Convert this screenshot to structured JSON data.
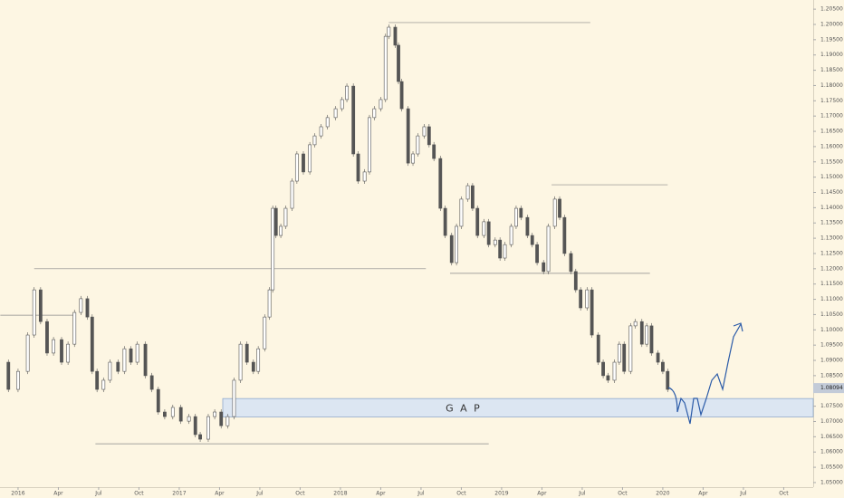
{
  "chart_data": {
    "type": "candles",
    "xlim": [
      2015.888,
      2020.933
    ],
    "ylim": [
      1.0485,
      1.208
    ],
    "xticks": [
      {
        "value": 2016,
        "label": "2016"
      },
      {
        "value": 2016.25,
        "label": "Apr"
      },
      {
        "value": 2016.5,
        "label": "Jul"
      },
      {
        "value": 2016.75,
        "label": "Oct"
      },
      {
        "value": 2017,
        "label": "2017"
      },
      {
        "value": 2017.25,
        "label": "Apr"
      },
      {
        "value": 2017.5,
        "label": "Jul"
      },
      {
        "value": 2017.75,
        "label": "Oct"
      },
      {
        "value": 2018,
        "label": "2018"
      },
      {
        "value": 2018.25,
        "label": "Apr"
      },
      {
        "value": 2018.5,
        "label": "Jul"
      },
      {
        "value": 2018.75,
        "label": "Oct"
      },
      {
        "value": 2019,
        "label": "2019"
      },
      {
        "value": 2019.25,
        "label": "Apr"
      },
      {
        "value": 2019.5,
        "label": "Jul"
      },
      {
        "value": 2019.75,
        "label": "Oct"
      },
      {
        "value": 2020,
        "label": "2020"
      },
      {
        "value": 2020.25,
        "label": "Apr"
      },
      {
        "value": 2020.5,
        "label": "Jul"
      },
      {
        "value": 2020.75,
        "label": "Oct"
      }
    ],
    "yticks": [
      {
        "value": 1.05,
        "label": "1.05000"
      },
      {
        "value": 1.055,
        "label": "1.05500"
      },
      {
        "value": 1.06,
        "label": "1.06000"
      },
      {
        "value": 1.065,
        "label": "1.06500"
      },
      {
        "value": 1.07,
        "label": "1.07000"
      },
      {
        "value": 1.075,
        "label": "1.07500"
      },
      {
        "value": 1.08,
        "label": "1.08000"
      },
      {
        "value": 1.085,
        "label": "1.08500"
      },
      {
        "value": 1.09,
        "label": "1.09000"
      },
      {
        "value": 1.095,
        "label": "1.09500"
      },
      {
        "value": 1.1,
        "label": "1.10000"
      },
      {
        "value": 1.105,
        "label": "1.10500"
      },
      {
        "value": 1.11,
        "label": "1.11000"
      },
      {
        "value": 1.115,
        "label": "1.11500"
      },
      {
        "value": 1.12,
        "label": "1.12000"
      },
      {
        "value": 1.125,
        "label": "1.12500"
      },
      {
        "value": 1.13,
        "label": "1.13000"
      },
      {
        "value": 1.135,
        "label": "1.13500"
      },
      {
        "value": 1.14,
        "label": "1.14000"
      },
      {
        "value": 1.145,
        "label": "1.14500"
      },
      {
        "value": 1.15,
        "label": "1.15000"
      },
      {
        "value": 1.155,
        "label": "1.15500"
      },
      {
        "value": 1.16,
        "label": "1.16000"
      },
      {
        "value": 1.165,
        "label": "1.16500"
      },
      {
        "value": 1.17,
        "label": "1.17000"
      },
      {
        "value": 1.175,
        "label": "1.17500"
      },
      {
        "value": 1.18,
        "label": "1.18000"
      },
      {
        "value": 1.185,
        "label": "1.18500"
      },
      {
        "value": 1.19,
        "label": "1.19000"
      },
      {
        "value": 1.195,
        "label": "1.19500"
      },
      {
        "value": 1.2,
        "label": "1.20000"
      },
      {
        "value": 1.205,
        "label": "1.20500"
      }
    ],
    "series": [
      {
        "color": "#555555",
        "x": [
          2015.89,
          2015.94,
          2016.0,
          2016.06,
          2016.1,
          2016.14,
          2016.18,
          2016.22,
          2016.27,
          2016.31,
          2016.35,
          2016.39,
          2016.43,
          2016.46,
          2016.49,
          2016.53,
          2016.57,
          2016.62,
          2016.66,
          2016.7,
          2016.74,
          2016.79,
          2016.83,
          2016.87,
          2016.91,
          2016.96,
          2017.01,
          2017.06,
          2017.1,
          2017.13,
          2017.18,
          2017.22,
          2017.26,
          2017.3,
          2017.34,
          2017.38,
          2017.42,
          2017.46,
          2017.49,
          2017.53,
          2017.56,
          2017.58,
          2017.6,
          2017.63,
          2017.66,
          2017.7,
          2017.73,
          2017.77,
          2017.81,
          2017.84,
          2017.88,
          2017.92,
          2017.97,
          2018.01,
          2018.04,
          2018.08,
          2018.11,
          2018.15,
          2018.18,
          2018.21,
          2018.25,
          2018.28,
          2018.3,
          2018.34,
          2018.36,
          2018.38,
          2018.42,
          2018.45,
          2018.48,
          2018.52,
          2018.55,
          2018.58,
          2018.62,
          2018.65,
          2018.69,
          2018.72,
          2018.75,
          2018.79,
          2018.82,
          2018.85,
          2018.89,
          2018.92,
          2018.96,
          2018.99,
          2019.02,
          2019.06,
          2019.09,
          2019.12,
          2019.16,
          2019.19,
          2019.22,
          2019.26,
          2019.29,
          2019.33,
          2019.36,
          2019.39,
          2019.43,
          2019.46,
          2019.49,
          2019.53,
          2019.56,
          2019.6,
          2019.63,
          2019.66,
          2019.7,
          2019.73,
          2019.76,
          2019.8,
          2019.83,
          2019.87,
          2019.9,
          2019.93,
          2019.97,
          2020.0,
          2020.03
        ],
        "values": [
          1.0894,
          1.0805,
          1.0864,
          1.0983,
          1.1131,
          1.1027,
          1.0924,
          1.0968,
          1.0894,
          1.0953,
          1.1057,
          1.1102,
          1.1042,
          1.0864,
          1.0805,
          1.0835,
          1.0894,
          1.0864,
          1.0938,
          1.0894,
          1.0953,
          1.085,
          1.0805,
          1.0731,
          1.0716,
          1.0746,
          1.0701,
          1.0716,
          1.0657,
          1.0642,
          1.0716,
          1.0731,
          1.0686,
          1.0716,
          1.0835,
          1.0953,
          1.0894,
          1.0864,
          1.0938,
          1.1042,
          1.1131,
          1.1398,
          1.1309,
          1.1339,
          1.1398,
          1.1487,
          1.1576,
          1.1517,
          1.1606,
          1.1635,
          1.1665,
          1.1695,
          1.1724,
          1.1754,
          1.1798,
          1.1576,
          1.1487,
          1.1517,
          1.1695,
          1.1724,
          1.1754,
          1.1961,
          1.1991,
          1.1932,
          1.1813,
          1.1724,
          1.1546,
          1.1576,
          1.1635,
          1.1665,
          1.1606,
          1.1561,
          1.1398,
          1.1309,
          1.122,
          1.1339,
          1.1428,
          1.1472,
          1.1398,
          1.1309,
          1.1354,
          1.1279,
          1.1294,
          1.1235,
          1.1279,
          1.1339,
          1.1398,
          1.1368,
          1.1309,
          1.1279,
          1.122,
          1.1191,
          1.1339,
          1.1428,
          1.1368,
          1.125,
          1.1191,
          1.1131,
          1.1072,
          1.1131,
          1.0983,
          1.0894,
          1.085,
          1.0835,
          1.0894,
          1.0953,
          1.0864,
          1.1013,
          1.1027,
          1.0953,
          1.1013,
          1.0924,
          1.0894,
          1.0864,
          1.0805
        ]
      }
    ],
    "levels": [
      {
        "value": 1.1048,
        "x": [
          2015.89,
          2016.34
        ]
      },
      {
        "value": 1.12,
        "x": [
          2016.1,
          2018.53
        ]
      },
      {
        "value": 1.2006,
        "x": [
          2018.3,
          2019.55
        ]
      },
      {
        "value": 1.1475,
        "x": [
          2019.31,
          2020.03
        ]
      },
      {
        "value": 1.1185,
        "x": [
          2018.68,
          2019.92
        ]
      },
      {
        "value": 1.0627,
        "x": [
          2016.48,
          2018.92
        ]
      }
    ],
    "gap": {
      "label": "G A P",
      "range": [
        1.0715,
        1.0775
      ],
      "x_start": 2017.27
    },
    "last_price": {
      "value": 1.08094,
      "label": "1.08094"
    }
  }
}
